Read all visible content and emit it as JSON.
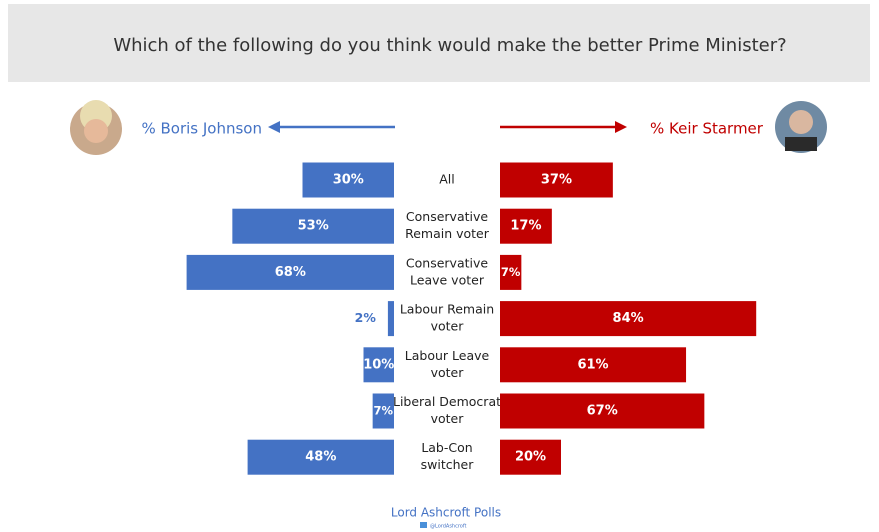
{
  "chart_data": {
    "type": "butterfly",
    "title": "Which of the following do you think would make the better Prime Minister?",
    "categories": [
      [
        "All"
      ],
      [
        "Conservative",
        "Remain voter"
      ],
      [
        "Conservative",
        "Leave voter"
      ],
      [
        "Labour Remain",
        "voter"
      ],
      [
        "Labour Leave",
        "voter"
      ],
      [
        "Liberal Democrat",
        "voter"
      ],
      [
        "Lab-Con",
        "switcher"
      ]
    ],
    "series": [
      {
        "name": "% Boris Johnson",
        "color": "#4472c4",
        "side": "left",
        "values": [
          30,
          53,
          68,
          2,
          10,
          7,
          48
        ],
        "value_labels": [
          "30%",
          "53%",
          "68%",
          "2%",
          "10%",
          "7%",
          "48%"
        ]
      },
      {
        "name": "% Keir Starmer",
        "color": "#c00000",
        "side": "right",
        "values": [
          37,
          17,
          7,
          84,
          61,
          67,
          20
        ],
        "value_labels": [
          "37%",
          "17%",
          "7%",
          "84%",
          "61%",
          "67%",
          "20%"
        ]
      }
    ],
    "source": "Lord Ashcroft Polls",
    "handle": "@LordAshcroft"
  }
}
